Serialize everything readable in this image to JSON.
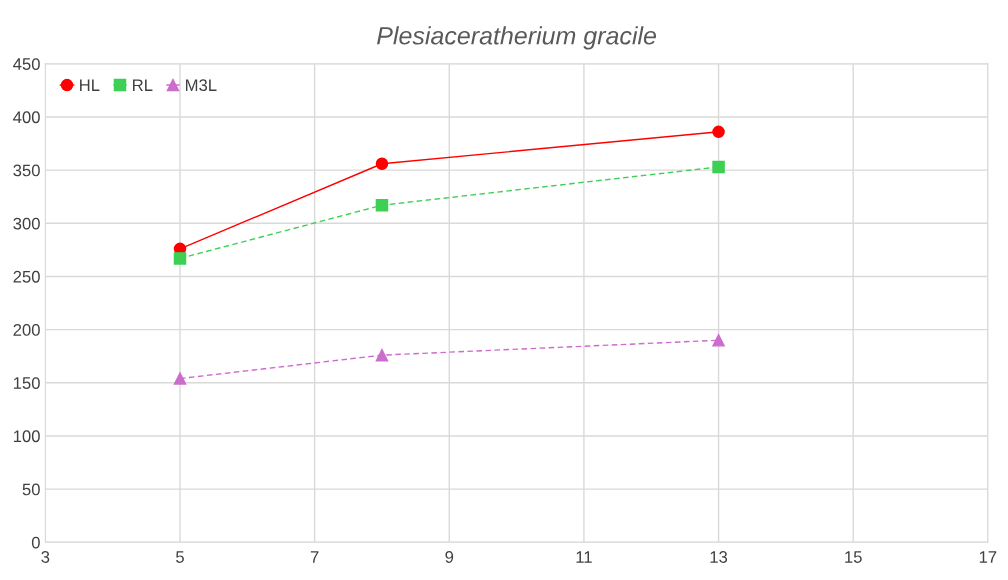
{
  "chart_data": {
    "type": "line",
    "title": "Plesiaceratherium gracile",
    "x": [
      5,
      8,
      13
    ],
    "series": [
      {
        "name": "HL",
        "color": "#ff0000",
        "values": [
          276,
          356,
          386
        ],
        "marker": "circle",
        "line_style": "solid"
      },
      {
        "name": "RL",
        "color": "#3ecf55",
        "values": [
          267,
          317,
          353
        ],
        "marker": "square",
        "line_style": "dashed"
      },
      {
        "name": "M3L",
        "color": "#cc6ccc",
        "values": [
          154,
          176,
          190
        ],
        "marker": "triangle",
        "line_style": "dashed"
      }
    ],
    "xlim": [
      3,
      17
    ],
    "xticks": [
      3,
      5,
      7,
      9,
      11,
      13,
      15,
      17
    ],
    "ylim": [
      0,
      450
    ],
    "yticks": [
      0,
      50,
      100,
      150,
      200,
      250,
      300,
      350,
      400,
      450
    ],
    "grid": true,
    "legend": "top left"
  }
}
